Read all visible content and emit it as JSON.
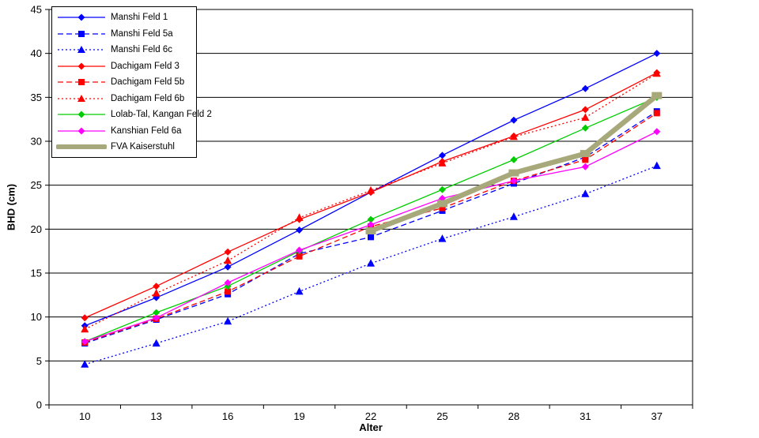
{
  "chart_data": {
    "type": "line",
    "title": "",
    "xlabel": "Alter",
    "ylabel": "BHD (cm)",
    "categories": [
      "10",
      "13",
      "16",
      "19",
      "22",
      "25",
      "28",
      "31",
      "37"
    ],
    "ylim": [
      0,
      45
    ],
    "ytick_step": 5,
    "grid": true,
    "legend_position": "top-left-inside",
    "axis_color": "#000000",
    "grid_color": "#000000",
    "background_color": "#ffffff",
    "series": [
      {
        "name": "Manshi Feld 1",
        "color": "#0000FF",
        "line": "solid",
        "marker": "diamond",
        "values": [
          9.0,
          12.2,
          15.7,
          19.9,
          24.2,
          28.4,
          32.4,
          36.0,
          40.0
        ]
      },
      {
        "name": "Manshi Feld 5a",
        "color": "#0000FF",
        "line": "dashed",
        "marker": "square",
        "values": [
          7.0,
          9.7,
          12.6,
          17.2,
          19.1,
          22.1,
          25.2,
          28.2,
          33.4
        ]
      },
      {
        "name": "Manshi Feld 6c",
        "color": "#0000FF",
        "line": "dotted",
        "marker": "triangle",
        "values": [
          4.6,
          7.0,
          9.5,
          12.9,
          16.1,
          18.9,
          21.4,
          24.0,
          27.2
        ]
      },
      {
        "name": "Dachigam Feld 3",
        "color": "#FF0000",
        "line": "solid",
        "marker": "diamond",
        "values": [
          9.9,
          13.5,
          17.4,
          21.1,
          24.2,
          27.7,
          30.6,
          33.6,
          37.8
        ]
      },
      {
        "name": "Dachigam Feld 5b",
        "color": "#FF0000",
        "line": "dashed",
        "marker": "square",
        "values": [
          7.1,
          9.8,
          12.9,
          16.9,
          20.3,
          22.4,
          25.5,
          27.9,
          33.2
        ]
      },
      {
        "name": "Dachigam Feld 6b",
        "color": "#FF0000",
        "line": "dotted",
        "marker": "triangle",
        "values": [
          8.6,
          12.7,
          16.4,
          21.3,
          24.4,
          27.5,
          30.5,
          32.7,
          37.7
        ]
      },
      {
        "name": "Lolab-Tal, Kangan Feld 2",
        "color": "#00CC00",
        "line": "solid",
        "marker": "diamond",
        "values": [
          7.2,
          10.5,
          13.5,
          17.5,
          21.1,
          24.5,
          27.9,
          31.5,
          35.0
        ]
      },
      {
        "name": "Kanshian Feld 6a",
        "color": "#FF00FF",
        "line": "solid",
        "marker": "diamond",
        "values": [
          7.2,
          9.9,
          13.9,
          17.6,
          20.5,
          23.5,
          25.5,
          27.1,
          31.1
        ]
      },
      {
        "name": "FVA Kaiserstuhl",
        "color": "#A8A97A",
        "line": "thick",
        "marker": "band",
        "values": [
          null,
          null,
          null,
          null,
          19.8,
          22.9,
          26.4,
          28.6,
          35.2
        ]
      }
    ]
  }
}
